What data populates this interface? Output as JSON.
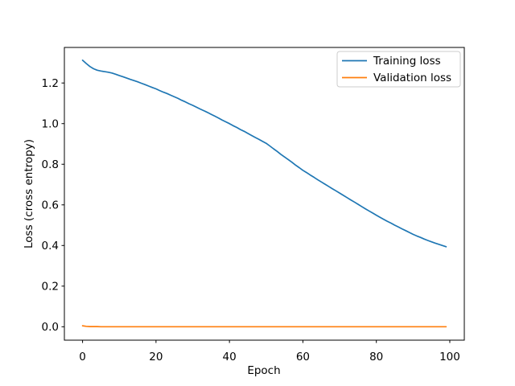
{
  "figure": {
    "background": "#ffffff"
  },
  "chart_data": {
    "type": "line",
    "title": "",
    "xlabel": "Epoch",
    "ylabel": "Loss (cross entropy)",
    "xlim": [
      -4.95,
      103.95
    ],
    "ylim": [
      -0.066,
      1.375
    ],
    "xticks": [
      0,
      20,
      40,
      60,
      80,
      100
    ],
    "xtick_labels": [
      "0",
      "20",
      "40",
      "60",
      "80",
      "100"
    ],
    "yticks": [
      0.0,
      0.2,
      0.4,
      0.6,
      0.8,
      1.0,
      1.2
    ],
    "ytick_labels": [
      "0.0",
      "0.2",
      "0.4",
      "0.6",
      "0.8",
      "1.0",
      "1.2"
    ],
    "grid": false,
    "legend_position": "upper right",
    "x_unit": "epoch index, one point per epoch (0 to 99)",
    "series": [
      {
        "name": "Training loss",
        "color": "#1f77b4",
        "values": [
          1.312,
          1.296,
          1.281,
          1.27,
          1.263,
          1.259,
          1.256,
          1.253,
          1.249,
          1.243,
          1.237,
          1.231,
          1.224,
          1.218,
          1.212,
          1.206,
          1.199,
          1.192,
          1.185,
          1.178,
          1.171,
          1.163,
          1.155,
          1.148,
          1.14,
          1.132,
          1.124,
          1.115,
          1.107,
          1.098,
          1.09,
          1.081,
          1.072,
          1.064,
          1.055,
          1.046,
          1.037,
          1.028,
          1.018,
          1.009,
          1.0,
          0.99,
          0.981,
          0.971,
          0.962,
          0.952,
          0.942,
          0.932,
          0.923,
          0.913,
          0.903,
          0.89,
          0.876,
          0.863,
          0.849,
          0.836,
          0.823,
          0.81,
          0.796,
          0.783,
          0.77,
          0.759,
          0.747,
          0.736,
          0.724,
          0.713,
          0.702,
          0.691,
          0.68,
          0.669,
          0.658,
          0.647,
          0.636,
          0.625,
          0.614,
          0.603,
          0.592,
          0.581,
          0.57,
          0.56,
          0.549,
          0.539,
          0.529,
          0.519,
          0.51,
          0.5,
          0.491,
          0.482,
          0.473,
          0.464,
          0.455,
          0.447,
          0.44,
          0.432,
          0.425,
          0.418,
          0.412,
          0.406,
          0.4,
          0.394
        ]
      },
      {
        "name": "Validation loss",
        "color": "#ff7f0e",
        "values": [
          0.005,
          0.002,
          0.001,
          0.001,
          0.001,
          0.0,
          0.0,
          0.0,
          0.0,
          0.0,
          0.0,
          0.0,
          0.0,
          0.0,
          0.0,
          0.0,
          0.0,
          0.0,
          0.0,
          0.0,
          0.0,
          0.0,
          0.0,
          0.0,
          0.0,
          0.0,
          0.0,
          0.0,
          0.0,
          0.0,
          0.0,
          0.0,
          0.0,
          0.0,
          0.0,
          0.0,
          0.0,
          0.0,
          0.0,
          0.0,
          0.0,
          0.0,
          0.0,
          0.0,
          0.0,
          0.0,
          0.0,
          0.0,
          0.0,
          0.0,
          0.0,
          0.0,
          0.0,
          0.0,
          0.0,
          0.0,
          0.0,
          0.0,
          0.0,
          0.0,
          0.0,
          0.0,
          0.0,
          0.0,
          0.0,
          0.0,
          0.0,
          0.0,
          0.0,
          0.0,
          0.0,
          0.0,
          0.0,
          0.0,
          0.0,
          0.0,
          0.0,
          0.0,
          0.0,
          0.0,
          0.0,
          0.0,
          0.0,
          0.0,
          0.0,
          0.0,
          0.0,
          0.0,
          0.0,
          0.0,
          0.0,
          0.0,
          0.0,
          0.0,
          0.0,
          0.0,
          0.0,
          0.0,
          0.0,
          0.0
        ]
      }
    ]
  }
}
